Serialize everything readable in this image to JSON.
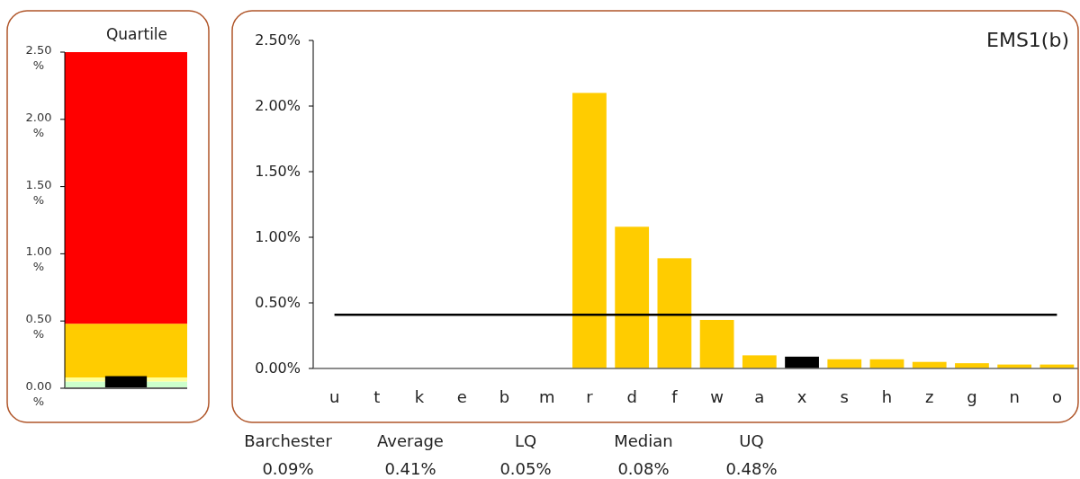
{
  "chart_data": [
    {
      "type": "bar",
      "title": "Quartile",
      "categories": [
        null
      ],
      "ylim": [
        0,
        2.5
      ],
      "yticks": [
        {
          "value": 0,
          "label": "0.00%"
        },
        {
          "value": 0.5,
          "label": "0.50%"
        },
        {
          "value": 1,
          "label": "1.00%"
        },
        {
          "value": 1.5,
          "label": "1.50%"
        },
        {
          "value": 2,
          "label": "2.00%"
        },
        {
          "value": 2.5,
          "label": "2.50%"
        }
      ],
      "series": [
        {
          "color": "#ccffcc",
          "values": [
            0.05
          ],
          "base": [
            0
          ]
        },
        {
          "color": "#ffff99",
          "values": [
            0.03
          ],
          "base": [
            0.05
          ]
        },
        {
          "color": "#ffcc00",
          "values": [
            0.4
          ],
          "base": [
            0.08
          ]
        },
        {
          "color": "#ff0000",
          "values": [
            2.02
          ],
          "base": [
            0.48
          ]
        },
        {
          "type": "bar",
          "color": "#000000",
          "values": [
            0.09
          ]
        }
      ]
    },
    {
      "type": "bar",
      "title": "EMS1(b)",
      "categories": [
        "u",
        "t",
        "k",
        "e",
        "b",
        "m",
        "r",
        "d",
        "f",
        "w",
        "a",
        "x",
        "s",
        "h",
        "z",
        "g",
        "n",
        "o"
      ],
      "values": [
        0,
        0,
        0,
        0,
        0,
        0,
        2.1,
        1.08,
        0.84,
        0.37,
        0.1,
        0.09,
        0.07,
        0.07,
        0.05,
        0.04,
        0.03,
        0.03
      ],
      "colors": [
        "#ffcc00",
        "#ffcc00",
        "#ffcc00",
        "#ffcc00",
        "#ffcc00",
        "#ffcc00",
        "#ffcc00",
        "#ffcc00",
        "#ffcc00",
        "#ffcc00",
        "#ffcc00",
        "#000000",
        "#ffcc00",
        "#ffcc00",
        "#ffcc00",
        "#ffcc00",
        "#ffcc00",
        "#ffcc00"
      ],
      "ylim": [
        0,
        2.5
      ],
      "yticks": [
        {
          "value": 0,
          "label": "0.00%"
        },
        {
          "value": 0.5,
          "label": "0.50%"
        },
        {
          "value": 1,
          "label": "1.00%"
        },
        {
          "value": 1.5,
          "label": "1.50%"
        },
        {
          "value": 2,
          "label": "2.00%"
        },
        {
          "value": 2.5,
          "label": "2.50%"
        }
      ],
      "ref_lines": [
        {
          "axis": "y",
          "value": 0.41,
          "color": "#000000"
        }
      ],
      "annotations": [
        "Barchester",
        "Average",
        "LQ",
        "Median",
        "UQ",
        "0.09%",
        "0.41%",
        "0.05%",
        "0.08%",
        "0.48%"
      ]
    }
  ]
}
